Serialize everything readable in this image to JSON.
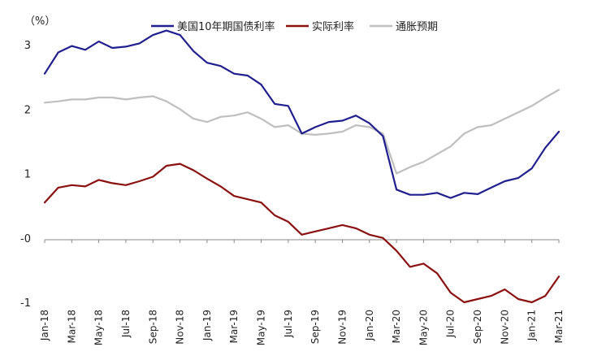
{
  "chart_data": {
    "type": "line",
    "unit_label": "（%）",
    "y_ticks": [
      "3",
      "2",
      "1",
      "-0",
      "-1"
    ],
    "ylim": [
      -1,
      3
    ],
    "x_ticks": [
      "Jan-18",
      "Mar-18",
      "May-18",
      "Jul-18",
      "Sep-18",
      "Nov-18",
      "Jan-19",
      "Mar-19",
      "May-19",
      "Jul-19",
      "Sep-19",
      "Nov-19",
      "Jan-20",
      "Mar-20",
      "May-20",
      "Jul-20",
      "Sep-20",
      "Nov-20",
      "Jan-21",
      "Mar-21"
    ],
    "legend_position": "top",
    "grid": false,
    "colors": {
      "nominal": "#1f1f8f",
      "real": "#8b1010",
      "breakeven": "#bfbfbf",
      "negative_tick": "#cc2222"
    },
    "x": [
      "2018-01",
      "2018-02",
      "2018-03",
      "2018-04",
      "2018-05",
      "2018-06",
      "2018-07",
      "2018-08",
      "2018-09",
      "2018-10",
      "2018-11",
      "2018-12",
      "2019-01",
      "2019-02",
      "2019-03",
      "2019-04",
      "2019-05",
      "2019-06",
      "2019-07",
      "2019-08",
      "2019-09",
      "2019-10",
      "2019-11",
      "2019-12",
      "2020-01",
      "2020-02",
      "2020-03",
      "2020-04",
      "2020-05",
      "2020-06",
      "2020-07",
      "2020-08",
      "2020-09",
      "2020-10",
      "2020-11",
      "2020-12",
      "2021-01",
      "2021-02",
      "2021-03"
    ],
    "series": [
      {
        "name": "美国10年期国债利率",
        "key": "nominal",
        "values": [
          2.55,
          2.88,
          2.98,
          2.92,
          3.05,
          2.95,
          2.97,
          3.02,
          3.15,
          3.22,
          3.15,
          2.9,
          2.72,
          2.67,
          2.55,
          2.52,
          2.38,
          2.08,
          2.05,
          1.62,
          1.72,
          1.8,
          1.82,
          1.9,
          1.78,
          1.58,
          0.75,
          0.67,
          0.67,
          0.7,
          0.62,
          0.7,
          0.68,
          0.78,
          0.88,
          0.93,
          1.08,
          1.4,
          1.65
        ]
      },
      {
        "name": "实际利率",
        "key": "real",
        "values": [
          0.55,
          0.78,
          0.82,
          0.8,
          0.9,
          0.85,
          0.82,
          0.88,
          0.95,
          1.12,
          1.15,
          1.05,
          0.92,
          0.8,
          0.65,
          0.6,
          0.55,
          0.35,
          0.25,
          0.05,
          0.1,
          0.15,
          0.2,
          0.15,
          0.05,
          0.0,
          -0.2,
          -0.45,
          -0.4,
          -0.55,
          -0.85,
          -1.0,
          -0.95,
          -0.9,
          -0.8,
          -0.95,
          -1.0,
          -0.9,
          -0.6
        ]
      },
      {
        "name": "通胀预期",
        "key": "breakeven",
        "values": [
          2.1,
          2.12,
          2.15,
          2.15,
          2.18,
          2.18,
          2.15,
          2.18,
          2.2,
          2.12,
          2.0,
          1.85,
          1.8,
          1.88,
          1.9,
          1.95,
          1.85,
          1.72,
          1.75,
          1.62,
          1.6,
          1.62,
          1.65,
          1.75,
          1.72,
          1.62,
          1.0,
          1.1,
          1.18,
          1.3,
          1.42,
          1.62,
          1.72,
          1.75,
          1.85,
          1.95,
          2.05,
          2.18,
          2.3
        ]
      }
    ]
  }
}
